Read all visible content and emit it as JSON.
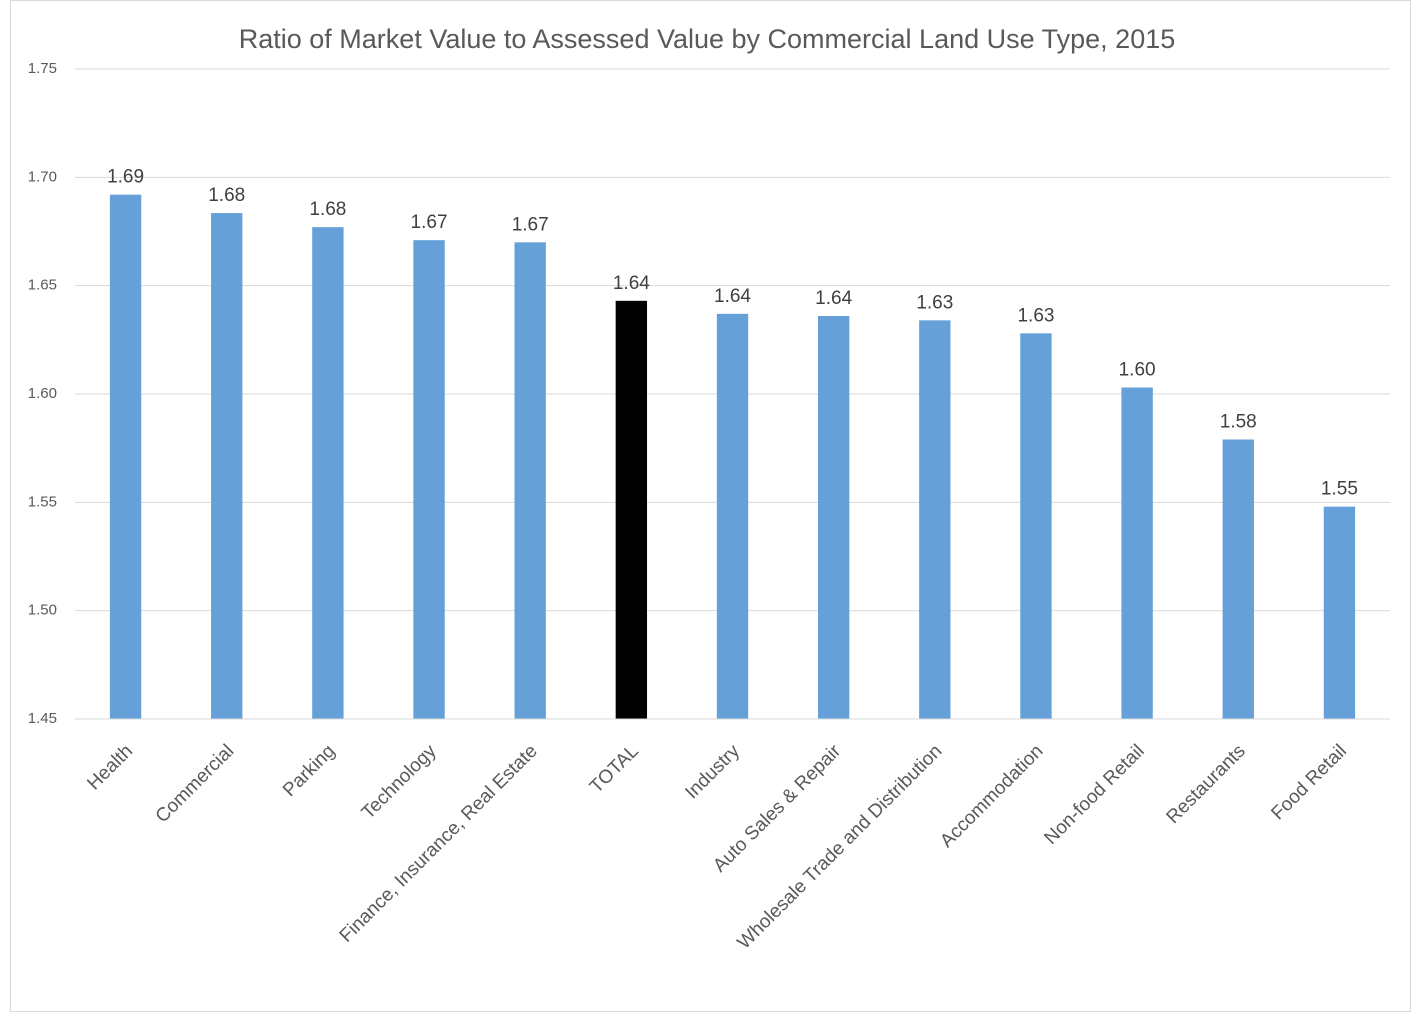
{
  "chart_data": {
    "type": "bar",
    "title": "Ratio of Market Value to Assessed Value by Commercial Land Use Type, 2015",
    "categories": [
      "Health",
      "Commercial",
      "Parking",
      "Technology",
      "Finance, Insurance, Real Estate",
      "TOTAL",
      "Industry",
      "Auto Sales & Repair",
      "Wholesale Trade and Distribution",
      "Accommodation",
      "Non-food Retail",
      "Restaurants",
      "Food Retail"
    ],
    "values": [
      1.692,
      1.6835,
      1.677,
      1.671,
      1.67,
      1.643,
      1.637,
      1.636,
      1.634,
      1.628,
      1.603,
      1.579,
      1.548
    ],
    "value_labels": [
      "1.69",
      "1.68",
      "1.68",
      "1.67",
      "1.67",
      "1.64",
      "1.64",
      "1.64",
      "1.63",
      "1.63",
      "1.60",
      "1.58",
      "1.55"
    ],
    "colors": [
      "#65a1d8",
      "#65a1d8",
      "#65a1d8",
      "#65a1d8",
      "#65a1d8",
      "#000000",
      "#65a1d8",
      "#65a1d8",
      "#65a1d8",
      "#65a1d8",
      "#65a1d8",
      "#65a1d8",
      "#65a1d8"
    ],
    "ylim": [
      1.45,
      1.75
    ],
    "yticks": [
      1.45,
      {
        "value": 1.5,
        "label": "1.50"
      },
      1.55,
      {
        "value": 1.6,
        "label": "1.60"
      },
      1.65,
      {
        "value": 1.7,
        "label": "1.70"
      },
      1.75
    ],
    "grid": true
  }
}
